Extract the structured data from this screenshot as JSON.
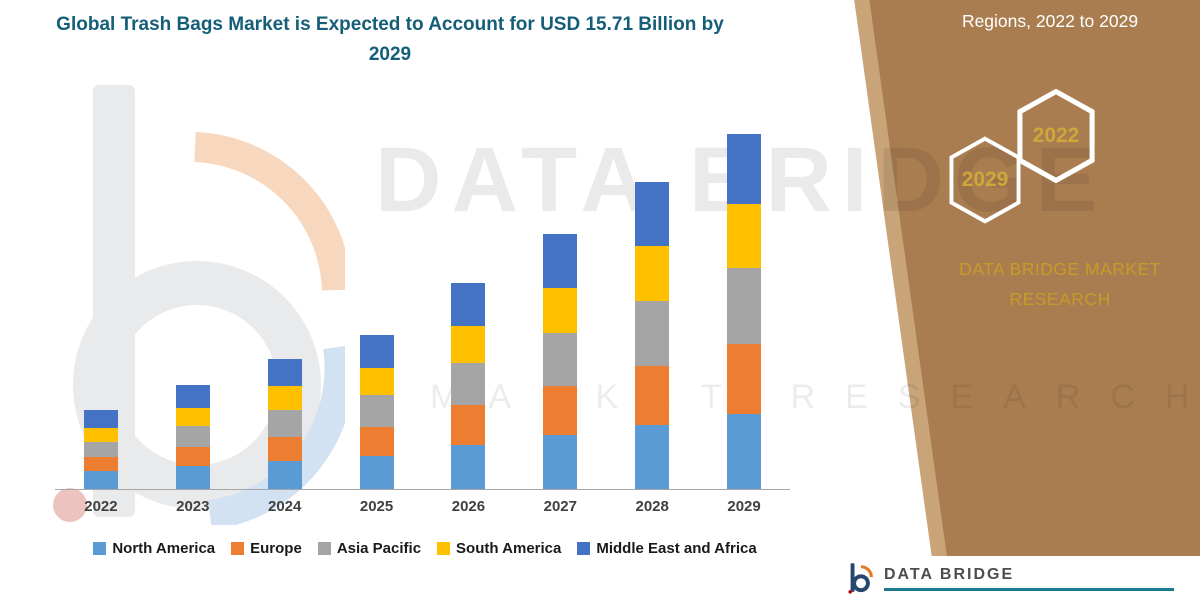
{
  "title": "Global Trash Bags Market is Expected to Account for USD 15.71 Billion by 2029",
  "watermark": {
    "line1": "DATA BRIDGE",
    "line2": "MARKET RESEARCH"
  },
  "side_panel": {
    "heading": "Regions, 2022 to 2029",
    "hexagons": [
      "2029",
      "2022"
    ],
    "brand": "DATA BRIDGE MARKET RESEARCH",
    "panel_color": "#a97d50",
    "accent_gold": "#cfa63b"
  },
  "footer": {
    "brand": "DATA BRIDGE"
  },
  "chart_data": {
    "type": "bar",
    "stacked": true,
    "title": "Global Trash Bags Market is Expected to Account for USD 15.71 Billion by 2029",
    "unit": "USD Billion",
    "highlight": "USD 15.71 Billion by 2029",
    "categories": [
      "2022",
      "2023",
      "2024",
      "2025",
      "2026",
      "2027",
      "2028",
      "2029"
    ],
    "series": [
      {
        "name": "North America",
        "color": "#5b9bd5",
        "values": [
          0.8,
          1.0,
          1.25,
          1.45,
          1.95,
          2.4,
          2.85,
          3.3
        ]
      },
      {
        "name": "Europe",
        "color": "#ed7d31",
        "values": [
          0.6,
          0.85,
          1.05,
          1.3,
          1.75,
          2.15,
          2.6,
          3.1
        ]
      },
      {
        "name": "Asia Pacific",
        "color": "#a5a5a5",
        "values": [
          0.7,
          0.95,
          1.2,
          1.4,
          1.9,
          2.35,
          2.85,
          3.4
        ]
      },
      {
        "name": "South America",
        "color": "#ffc000",
        "values": [
          0.6,
          0.8,
          1.05,
          1.2,
          1.6,
          2.0,
          2.45,
          2.8
        ]
      },
      {
        "name": "Middle East and Africa",
        "color": "#4472c4",
        "values": [
          0.8,
          1.0,
          1.2,
          1.45,
          1.9,
          2.4,
          2.85,
          3.11
        ]
      }
    ],
    "totals": [
      3.5,
      4.6,
      5.75,
      6.8,
      9.1,
      11.3,
      13.6,
      15.71
    ],
    "ylim": [
      0,
      16
    ],
    "grid": false,
    "legend_position": "bottom",
    "xlabel": "",
    "ylabel": ""
  }
}
